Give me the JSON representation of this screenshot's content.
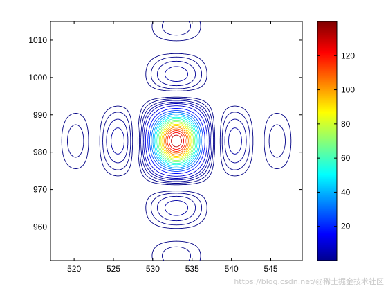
{
  "chart_data": {
    "type": "contour",
    "x_ticks": [
      "520",
      "525",
      "530",
      "535",
      "540",
      "545"
    ],
    "y_ticks": [
      "960",
      "970",
      "980",
      "990",
      "1000",
      "1010"
    ],
    "xlim": [
      517,
      549
    ],
    "ylim": [
      951,
      1015
    ],
    "colorbar": {
      "range": [
        0,
        140
      ],
      "ticks": [
        "20",
        "40",
        "60",
        "80",
        "100",
        "120"
      ],
      "colormap": "jet"
    },
    "peak": {
      "x": 533,
      "y": 983,
      "value": 138
    },
    "features": [
      {
        "x": 533,
        "y": 983,
        "kind": "main peak"
      },
      {
        "x": 527,
        "y": 983,
        "kind": "side lobe"
      },
      {
        "x": 538,
        "y": 983,
        "kind": "side lobe"
      },
      {
        "x": 523,
        "y": 983,
        "kind": "side lobe"
      },
      {
        "x": 543,
        "y": 983,
        "kind": "side lobe"
      },
      {
        "x": 519,
        "y": 983,
        "kind": "side lobe"
      },
      {
        "x": 547,
        "y": 983,
        "kind": "side lobe"
      },
      {
        "x": 533,
        "y": 997,
        "kind": "side lobe"
      },
      {
        "x": 533,
        "y": 967,
        "kind": "side lobe"
      },
      {
        "x": 533,
        "y": 1009,
        "kind": "side lobe"
      },
      {
        "x": 533,
        "y": 956,
        "kind": "side lobe"
      }
    ]
  },
  "watermark": "https://blog.csdn.net/@稀土掘金技术社区"
}
